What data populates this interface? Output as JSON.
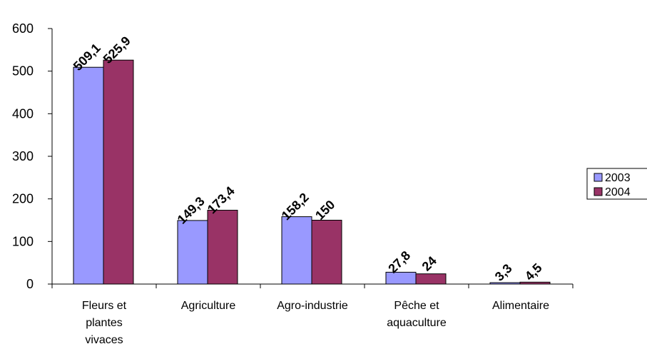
{
  "chart_data": {
    "type": "bar",
    "title": "",
    "xlabel": "",
    "ylabel": "",
    "categories": [
      [
        "Fleurs et",
        "plantes",
        "vivaces"
      ],
      [
        "Agriculture"
      ],
      [
        "Agro-industrie"
      ],
      [
        "Pêche et",
        "aquaculture"
      ],
      [
        "Alimentaire"
      ]
    ],
    "series": [
      {
        "name": "2003",
        "color": "#9999ff",
        "values": [
          509.1,
          149.3,
          158.2,
          27.8,
          3.3
        ],
        "labels": [
          "509,1",
          "149,3",
          "158,2",
          "27,8",
          "3,3"
        ]
      },
      {
        "name": "2004",
        "color": "#993366",
        "values": [
          525.9,
          173.4,
          150,
          24,
          4.5
        ],
        "labels": [
          "525,9",
          "173,4",
          "150",
          "24",
          "4,5"
        ]
      }
    ],
    "ylim": [
      0,
      600
    ],
    "yticks": [
      0,
      100,
      200,
      300,
      400,
      500,
      600
    ],
    "grid": false,
    "legend_position": "right"
  }
}
